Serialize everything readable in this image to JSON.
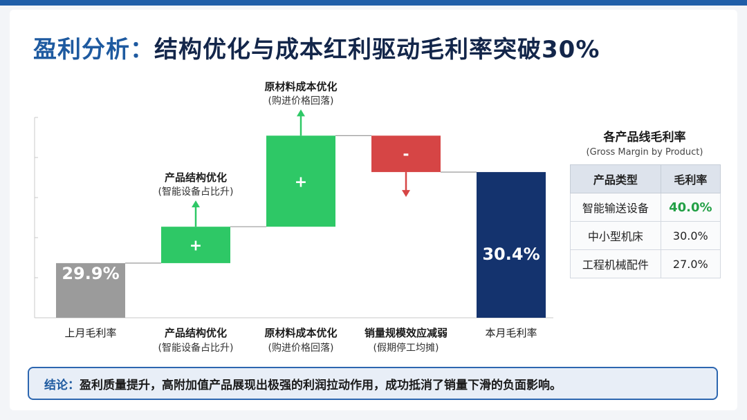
{
  "title": {
    "prefix": "盈利分析：",
    "main": "结构优化与成本红利驱动毛利率突破30%"
  },
  "chart_data": {
    "type": "bar",
    "subtype": "waterfall",
    "categories": [
      {
        "label": "上月毛利率",
        "sub": ""
      },
      {
        "label": "产品结构优化",
        "sub": "(智能设备占比升)"
      },
      {
        "label": "原材料成本优化",
        "sub": "(购进价格回落)"
      },
      {
        "label": "销量规模效应减弱",
        "sub": "(假期停工均摊)"
      },
      {
        "label": "本月毛利率",
        "sub": ""
      }
    ],
    "steps": [
      {
        "kind": "total",
        "start": 0,
        "end": 29.9,
        "label": "29.9%",
        "color": "#9b9b9b"
      },
      {
        "kind": "increase",
        "start": 29.9,
        "end": 30.1,
        "label": "+",
        "color": "#2ec866",
        "ann_title": "产品结构优化",
        "ann_sub": "(智能设备占比升)"
      },
      {
        "kind": "increase",
        "start": 30.1,
        "end": 30.6,
        "label": "+",
        "color": "#2ec866",
        "ann_title": "原材料成本优化",
        "ann_sub": "(购进价格回落)"
      },
      {
        "kind": "decrease",
        "start": 30.6,
        "end": 30.4,
        "label": "-",
        "color": "#d64545"
      },
      {
        "kind": "total",
        "start": 0,
        "end": 30.4,
        "label": "30.4%",
        "color": "#14336e"
      }
    ],
    "ylim": [
      29.6,
      30.7
    ],
    "grid": false
  },
  "table": {
    "title": "各产品线毛利率",
    "subtitle": "(Gross Margin by Product)",
    "headers": [
      "产品类型",
      "毛利率"
    ],
    "rows": [
      {
        "name": "智能输送设备",
        "value": "40.0%"
      },
      {
        "name": "中小型机床",
        "value": "30.0%"
      },
      {
        "name": "工程机械配件",
        "value": "27.0%"
      }
    ],
    "highlight_color": "#23a046"
  },
  "conclusion": {
    "label": "结论：",
    "text": "盈利质量提升，高附加值产品展现出极强的利润拉动作用，成功抵消了销量下滑的负面影响。"
  }
}
